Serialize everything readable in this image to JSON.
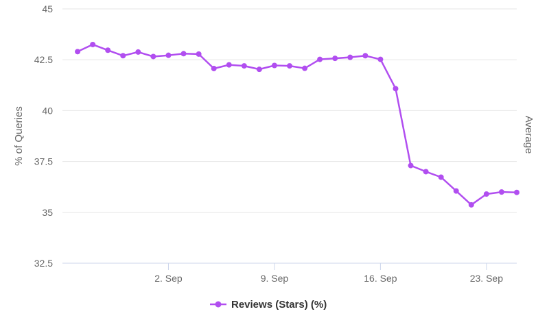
{
  "colors": {
    "series": "#b14ef0",
    "grid": "#e6e6e6",
    "axis_line": "#ccd6eb",
    "text": "#666666",
    "legend_text": "#333333"
  },
  "chart_data": {
    "type": "line",
    "title": "",
    "ylabel": "% of Queries",
    "ylabel_right": "Average",
    "xlabel": "",
    "ylim": [
      32.5,
      45
    ],
    "yticks": [
      {
        "value": 32.5,
        "label": "32.5"
      },
      {
        "value": 35,
        "label": "35"
      },
      {
        "value": 37.5,
        "label": "37.5"
      },
      {
        "value": 40,
        "label": "40"
      },
      {
        "value": 42.5,
        "label": "42.5"
      },
      {
        "value": 45,
        "label": "45"
      }
    ],
    "x": [
      "2024-08-27",
      "2024-08-28",
      "2024-08-29",
      "2024-08-30",
      "2024-08-31",
      "2024-09-01",
      "2024-09-02",
      "2024-09-03",
      "2024-09-04",
      "2024-09-05",
      "2024-09-06",
      "2024-09-07",
      "2024-09-08",
      "2024-09-09",
      "2024-09-10",
      "2024-09-11",
      "2024-09-12",
      "2024-09-13",
      "2024-09-14",
      "2024-09-15",
      "2024-09-16",
      "2024-09-17",
      "2024-09-18",
      "2024-09-19",
      "2024-09-20",
      "2024-09-21",
      "2024-09-22",
      "2024-09-23",
      "2024-09-24",
      "2024-09-25"
    ],
    "xlim": [
      "2024-08-26",
      "2024-09-25"
    ],
    "xticks": [
      {
        "value": "2024-09-02",
        "label": "2. Sep"
      },
      {
        "value": "2024-09-09",
        "label": "9. Sep"
      },
      {
        "value": "2024-09-16",
        "label": "16. Sep"
      },
      {
        "value": "2024-09-23",
        "label": "23. Sep"
      }
    ],
    "series": [
      {
        "name": "Reviews (Stars) (%)",
        "values": [
          42.9,
          43.25,
          42.97,
          42.7,
          42.88,
          42.66,
          42.72,
          42.8,
          42.78,
          42.07,
          42.25,
          42.2,
          42.03,
          42.22,
          42.2,
          42.08,
          42.52,
          42.57,
          42.62,
          42.7,
          42.52,
          41.08,
          37.3,
          37.0,
          36.73,
          36.05,
          35.37,
          35.9,
          36.0,
          35.98
        ]
      }
    ],
    "grid": true,
    "legend": "bottom-center"
  }
}
